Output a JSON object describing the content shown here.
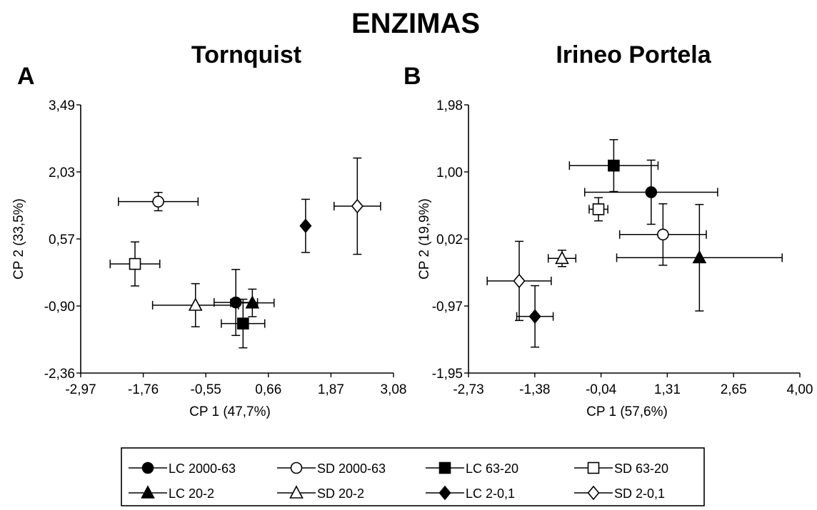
{
  "figure_title": "ENZIMAS",
  "chart_data": [
    {
      "type": "scatter",
      "panel_letter": "A",
      "title": "Tornquist",
      "xlabel": "CP 1 (47,7%)",
      "ylabel": "CP 2 (33,5%)",
      "xlim": [
        -2.97,
        3.08
      ],
      "ylim": [
        -2.36,
        3.49
      ],
      "xticks": [
        "-2,97",
        "-1,76",
        "-0,55",
        "0,66",
        "1,87",
        "3,08"
      ],
      "yticks": [
        "-2,36",
        "-0,90",
        "0,57",
        "2,03",
        "3,49"
      ],
      "series": [
        {
          "name": "LC 2000-63",
          "marker": "circle",
          "fill": "#000000",
          "x": 0.03,
          "y": -0.82,
          "xerr": 0.42,
          "yerr": 0.72
        },
        {
          "name": "SD 2000-63",
          "marker": "circle",
          "fill": "#ffffff",
          "x": -1.47,
          "y": 1.38,
          "xerr": 0.77,
          "yerr": 0.2
        },
        {
          "name": "LC 63-20",
          "marker": "square",
          "fill": "#000000",
          "x": 0.17,
          "y": -1.28,
          "xerr": 0.42,
          "yerr": 0.53
        },
        {
          "name": "SD 63-20",
          "marker": "square",
          "fill": "#ffffff",
          "x": -1.92,
          "y": 0.02,
          "xerr": 0.48,
          "yerr": 0.48
        },
        {
          "name": "LC 20-2",
          "marker": "triangle",
          "fill": "#000000",
          "x": 0.35,
          "y": -0.83,
          "xerr": 0.42,
          "yerr": 0.3
        },
        {
          "name": "SD 20-2",
          "marker": "triangle",
          "fill": "#ffffff",
          "x": -0.75,
          "y": -0.88,
          "xerr": 0.83,
          "yerr": 0.47
        },
        {
          "name": "LC 2-0,1",
          "marker": "diamond",
          "fill": "#000000",
          "x": 1.38,
          "y": 0.85,
          "xerr": 0.0,
          "yerr": 0.58
        },
        {
          "name": "SD 2-0,1",
          "marker": "diamond",
          "fill": "#ffffff",
          "x": 2.38,
          "y": 1.28,
          "xerr": 0.45,
          "yerr": 1.05
        }
      ]
    },
    {
      "type": "scatter",
      "panel_letter": "B",
      "title": "Irineo Portela",
      "xlabel": "CP 1 (57,6%)",
      "ylabel": "CP 2 (19,9%)",
      "xlim": [
        -2.73,
        4.0
      ],
      "ylim": [
        -1.95,
        1.98
      ],
      "xticks": [
        "-2,73",
        "-1,38",
        "-0,04",
        "1,31",
        "2,65",
        "4,00"
      ],
      "yticks": [
        "-1,95",
        "-0,97",
        "0,02",
        "1,00",
        "1,98"
      ],
      "series": [
        {
          "name": "LC 2000-63",
          "marker": "circle",
          "fill": "#000000",
          "x": 0.98,
          "y": 0.7,
          "xerr": 1.35,
          "yerr": 0.47
        },
        {
          "name": "SD 2000-63",
          "marker": "circle",
          "fill": "#ffffff",
          "x": 1.22,
          "y": 0.08,
          "xerr": 0.88,
          "yerr": 0.45
        },
        {
          "name": "LC 63-20",
          "marker": "square",
          "fill": "#000000",
          "x": 0.22,
          "y": 1.09,
          "xerr": 0.9,
          "yerr": 0.38
        },
        {
          "name": "SD 63-20",
          "marker": "square",
          "fill": "#ffffff",
          "x": -0.09,
          "y": 0.45,
          "xerr": 0.19,
          "yerr": 0.17
        },
        {
          "name": "LC 20-2",
          "marker": "triangle",
          "fill": "#000000",
          "x": 1.96,
          "y": -0.26,
          "xerr": 1.68,
          "yerr": 0.78
        },
        {
          "name": "SD 20-2",
          "marker": "triangle",
          "fill": "#ffffff",
          "x": -0.83,
          "y": -0.27,
          "xerr": 0.28,
          "yerr": 0.12
        },
        {
          "name": "LC 2-0,1",
          "marker": "diamond",
          "fill": "#000000",
          "x": -1.38,
          "y": -1.12,
          "xerr": 0.37,
          "yerr": 0.45
        },
        {
          "name": "SD 2-0,1",
          "marker": "diamond",
          "fill": "#ffffff",
          "x": -1.7,
          "y": -0.6,
          "xerr": 0.65,
          "yerr": 0.58
        }
      ]
    }
  ],
  "legend": [
    {
      "label": "LC 2000-63",
      "marker": "circle",
      "fill": "#000000"
    },
    {
      "label": "SD 2000-63",
      "marker": "circle",
      "fill": "#ffffff"
    },
    {
      "label": "LC 63-20",
      "marker": "square",
      "fill": "#000000"
    },
    {
      "label": "SD 63-20",
      "marker": "square",
      "fill": "#ffffff"
    },
    {
      "label": "LC 20-2",
      "marker": "triangle",
      "fill": "#000000"
    },
    {
      "label": "SD 20-2",
      "marker": "triangle",
      "fill": "#ffffff"
    },
    {
      "label": "LC 2-0,1",
      "marker": "diamond",
      "fill": "#000000"
    },
    {
      "label": "SD 2-0,1",
      "marker": "diamond",
      "fill": "#ffffff"
    }
  ]
}
